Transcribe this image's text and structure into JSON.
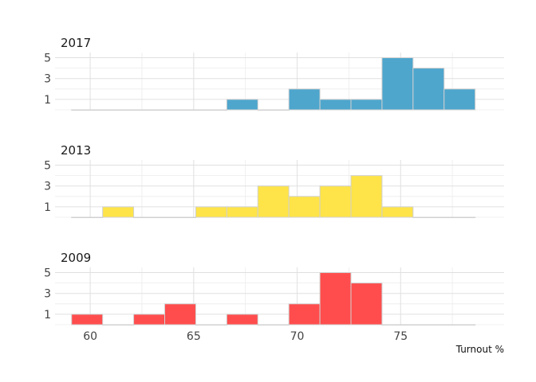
{
  "chart_data": {
    "type": "histogram",
    "xlabel": "Turnout %",
    "xlim": [
      58.3,
      80.0
    ],
    "x_ticks": [
      60,
      65,
      70,
      75
    ],
    "y_ticks": [
      1,
      3,
      5
    ],
    "ylim": [
      0,
      5.5
    ],
    "grid": true,
    "bin_edges": [
      59.1,
      60.6,
      62.1,
      63.6,
      65.1,
      66.6,
      68.1,
      69.6,
      71.1,
      72.6,
      74.1,
      75.6,
      77.1,
      78.6
    ],
    "panels": [
      {
        "title": "2017",
        "color": "#4ea6cd",
        "counts": [
          0,
          0,
          0,
          0,
          0,
          1,
          0,
          2,
          1,
          1,
          5,
          4,
          2
        ]
      },
      {
        "title": "2013",
        "color": "#fee448",
        "counts": [
          0,
          1,
          0,
          0,
          1,
          1,
          3,
          2,
          3,
          4,
          1,
          0,
          0
        ]
      },
      {
        "title": "2009",
        "color": "#ff4d4d",
        "counts": [
          1,
          0,
          1,
          2,
          0,
          1,
          0,
          2,
          5,
          4,
          0,
          0,
          0
        ]
      }
    ]
  }
}
